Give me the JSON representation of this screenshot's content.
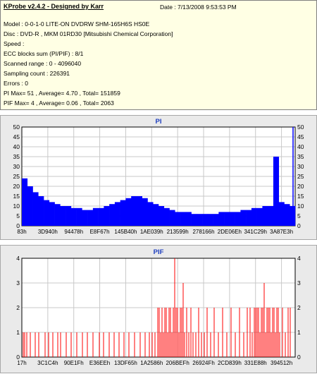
{
  "header": {
    "title": "KProbe v2.4.2 - Designed by Karr",
    "date": "Date : 7/13/2008 9:53:53 PM",
    "lines": [
      "Model : 0-0-1-0 LITE-ON DVDRW SHM-165H6S HS0E",
      "Disc : DVD-R , MKM 01RD30  [Mitsubishi Chemical Corporation]",
      "Speed :",
      "ECC blocks sum (PI/PIF) : 8/1",
      "Scanned range : 0 - 4096040",
      "Sampling count : 226391",
      "Errors : 0",
      "PI Max= 51 , Average= 4.70 , Total= 151859",
      "PIF Max= 4 , Average= 0.06 , Total= 2063"
    ]
  },
  "colors": {
    "pi": "#0000ff",
    "pif": "#ff0000",
    "title": "#1f3fbf",
    "grid": "#c8c8c8"
  },
  "chart_data": [
    {
      "type": "bar",
      "title": "PI",
      "x_tick_labels": [
        "83h",
        "3D940h",
        "94478h",
        "E8F67h",
        "145B40h",
        "1AE039h",
        "213599h",
        "278166h",
        "2DE06Eh",
        "341C29h",
        "3A87E3h"
      ],
      "y_ticks": [
        0,
        5,
        10,
        15,
        20,
        25,
        30,
        35,
        40,
        45,
        50
      ],
      "ylim": [
        0,
        50
      ],
      "xlim": [
        0,
        4096040
      ],
      "grid": true,
      "values": [
        24,
        20,
        17,
        15,
        13,
        12,
        11,
        10,
        10,
        9,
        9,
        8,
        8,
        9,
        9,
        10,
        11,
        12,
        13,
        14,
        15,
        15,
        14,
        12,
        11,
        10,
        9,
        8,
        7,
        7,
        7,
        6,
        6,
        6,
        6,
        6,
        7,
        7,
        7,
        7,
        8,
        8,
        9,
        9,
        10,
        10,
        35,
        12,
        11,
        10
      ],
      "max_value": 51
    },
    {
      "type": "bar",
      "title": "PIF",
      "x_tick_labels": [
        "17h",
        "3C1C4h",
        "90E1Fh",
        "E36EEh",
        "13DF65h",
        "1A2586h",
        "206BEFh",
        "26924Fh",
        "2CD839h",
        "331E88h",
        "394512h"
      ],
      "y_ticks": [
        0,
        1,
        2,
        3,
        4
      ],
      "ylim": [
        0,
        4
      ],
      "xlim": [
        0,
        4096040
      ],
      "grid": true,
      "spikes": [
        [
          2,
          1
        ],
        [
          4,
          1
        ],
        [
          7,
          1
        ],
        [
          12,
          1
        ],
        [
          19,
          1
        ],
        [
          24,
          1
        ],
        [
          33,
          1
        ],
        [
          38,
          1
        ],
        [
          44,
          1
        ],
        [
          51,
          1
        ],
        [
          55,
          1
        ],
        [
          63,
          1
        ],
        [
          70,
          1
        ],
        [
          78,
          1
        ],
        [
          86,
          1
        ],
        [
          93,
          1
        ],
        [
          101,
          1
        ],
        [
          110,
          1
        ],
        [
          116,
          1
        ],
        [
          124,
          1
        ],
        [
          131,
          1
        ],
        [
          138,
          1
        ],
        [
          145,
          1
        ],
        [
          152,
          1
        ],
        [
          160,
          1
        ],
        [
          168,
          1
        ],
        [
          175,
          1
        ],
        [
          181,
          1
        ],
        [
          185,
          1
        ],
        [
          189,
          1
        ],
        [
          193,
          2
        ],
        [
          195,
          2
        ],
        [
          197,
          1
        ],
        [
          199,
          2
        ],
        [
          201,
          1
        ],
        [
          203,
          2
        ],
        [
          205,
          2
        ],
        [
          207,
          1
        ],
        [
          209,
          2
        ],
        [
          211,
          2
        ],
        [
          213,
          1
        ],
        [
          215,
          2
        ],
        [
          217,
          4
        ],
        [
          219,
          2
        ],
        [
          221,
          2
        ],
        [
          223,
          1
        ],
        [
          225,
          2
        ],
        [
          227,
          2
        ],
        [
          229,
          3
        ],
        [
          231,
          1
        ],
        [
          234,
          2
        ],
        [
          237,
          1
        ],
        [
          240,
          2
        ],
        [
          243,
          1
        ],
        [
          247,
          1
        ],
        [
          251,
          2
        ],
        [
          255,
          1
        ],
        [
          259,
          1
        ],
        [
          263,
          2
        ],
        [
          268,
          1
        ],
        [
          273,
          2
        ],
        [
          279,
          1
        ],
        [
          285,
          2
        ],
        [
          291,
          1
        ],
        [
          297,
          2
        ],
        [
          303,
          1
        ],
        [
          309,
          2
        ],
        [
          315,
          1
        ],
        [
          320,
          2
        ],
        [
          324,
          2
        ],
        [
          327,
          1
        ],
        [
          330,
          2
        ],
        [
          332,
          2
        ],
        [
          334,
          2
        ],
        [
          336,
          2
        ],
        [
          338,
          1
        ],
        [
          340,
          2
        ],
        [
          342,
          2
        ],
        [
          344,
          3
        ],
        [
          346,
          1
        ],
        [
          348,
          2
        ],
        [
          350,
          2
        ],
        [
          352,
          2
        ],
        [
          354,
          1
        ],
        [
          356,
          2
        ],
        [
          358,
          2
        ],
        [
          360,
          1
        ],
        [
          362,
          2
        ],
        [
          364,
          2
        ],
        [
          366,
          1
        ],
        [
          370,
          2
        ],
        [
          374,
          1
        ],
        [
          378,
          2
        ],
        [
          381,
          2
        ]
      ],
      "max_value": 4
    }
  ]
}
